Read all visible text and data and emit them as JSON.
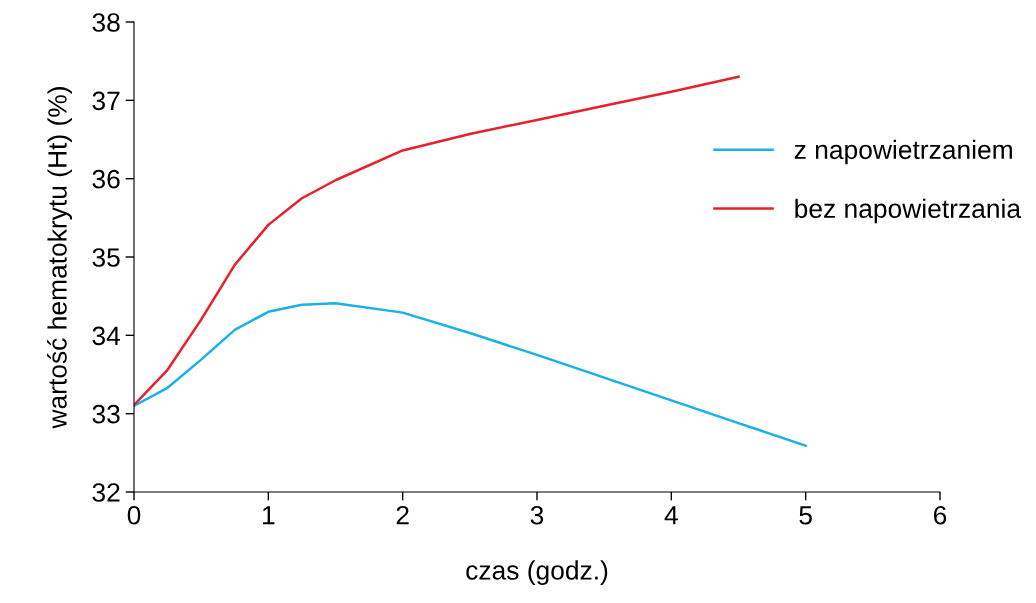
{
  "chart_data": {
    "type": "line",
    "xlabel": "czas (godz.)",
    "ylabel": "wartość hematokrytu (Ht) (%)",
    "xlim": [
      0,
      6
    ],
    "ylim": [
      32,
      38
    ],
    "xticks": [
      0,
      1,
      2,
      3,
      4,
      5,
      6
    ],
    "yticks": [
      32,
      33,
      34,
      35,
      36,
      37,
      38
    ],
    "grid": false,
    "legend": "top right",
    "marker": "none",
    "line_style": "solid",
    "series": [
      {
        "name": "z napowietrzaniem",
        "color": "#1ab0e8",
        "x": [
          0,
          0.25,
          0.5,
          0.75,
          1,
          1.25,
          1.5,
          2,
          2.5,
          3,
          3.5,
          4,
          4.5,
          5
        ],
        "values": [
          33.1,
          33.33,
          33.69,
          34.07,
          34.3,
          34.39,
          34.41,
          34.29,
          34.03,
          33.75,
          33.46,
          33.17,
          32.88,
          32.59
        ]
      },
      {
        "name": "bez napowietrzania",
        "color": "#e8202a",
        "x": [
          0,
          0.25,
          0.5,
          0.75,
          1,
          1.25,
          1.5,
          2,
          2.5,
          3,
          3.5,
          4,
          4.5
        ],
        "values": [
          33.11,
          33.56,
          34.2,
          34.9,
          35.41,
          35.75,
          35.98,
          36.36,
          36.57,
          36.75,
          36.93,
          37.11,
          37.3
        ]
      }
    ]
  }
}
